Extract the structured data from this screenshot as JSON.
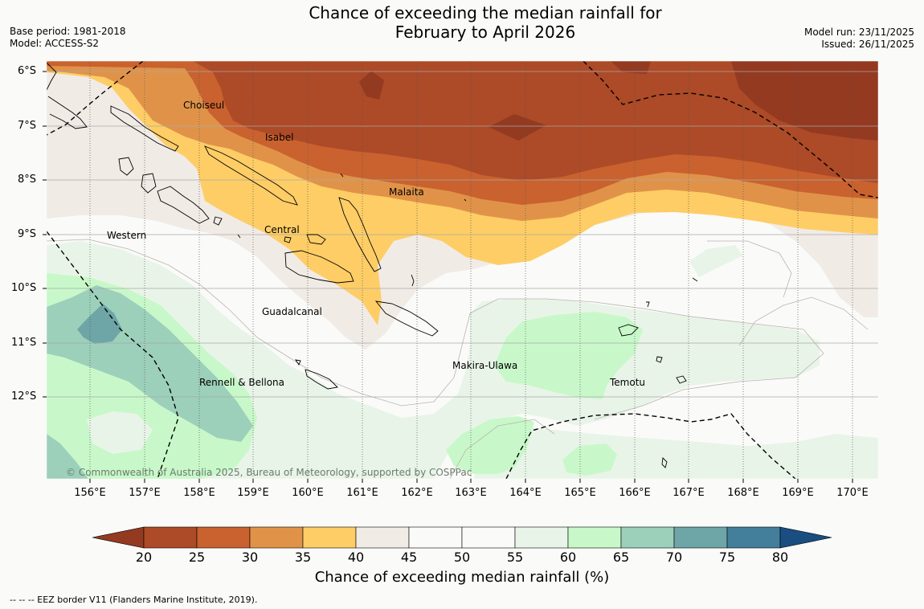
{
  "header": {
    "title_line1": "Chance of exceeding the median rainfall for",
    "title_line2": "February to April 2026",
    "base_period": "Base period: 1981-2018",
    "model": "Model: ACCESS-S2",
    "model_run": "Model run: 23/11/2025",
    "issued": "Issued: 26/11/2025"
  },
  "map": {
    "lat_labels": [
      "6°S",
      "7°S",
      "8°S",
      "9°S",
      "10°S",
      "11°S",
      "12°S"
    ],
    "lon_labels": [
      "156°E",
      "157°E",
      "158°E",
      "159°E",
      "160°E",
      "161°E",
      "162°E",
      "163°E",
      "164°E",
      "165°E",
      "166°E",
      "167°E",
      "168°E",
      "169°E",
      "170°E"
    ],
    "places": [
      "Choiseul",
      "Isabel",
      "Malaita",
      "Western",
      "Central",
      "Guadalcanal",
      "Makira-Ulawa",
      "Rennell & Bellona",
      "Temotu"
    ],
    "copyright": "© Commonwealth of Australia 2025, Bureau of Meteorology, supported by COSPPac"
  },
  "colorbar": {
    "ticks": [
      "20",
      "25",
      "30",
      "35",
      "40",
      "45",
      "50",
      "55",
      "60",
      "65",
      "70",
      "75",
      "80"
    ],
    "label": "Chance of exceeding median rainfall (%)",
    "colors": [
      "#ad4a27",
      "#c9622f",
      "#e09348",
      "#fecd66",
      "#f1ebe6",
      "#fafbf9",
      "#fafbf9",
      "#e9f4e8",
      "#c8f8c9",
      "#9cd0ba",
      "#6ea5a6",
      "#437e9b"
    ],
    "low_arrow_color": "#933a21",
    "high_arrow_color": "#1a4d80"
  },
  "footer": {
    "legend": "--  --  -- EEZ border V11 (Flanders Marine Institute, 2019)."
  }
}
